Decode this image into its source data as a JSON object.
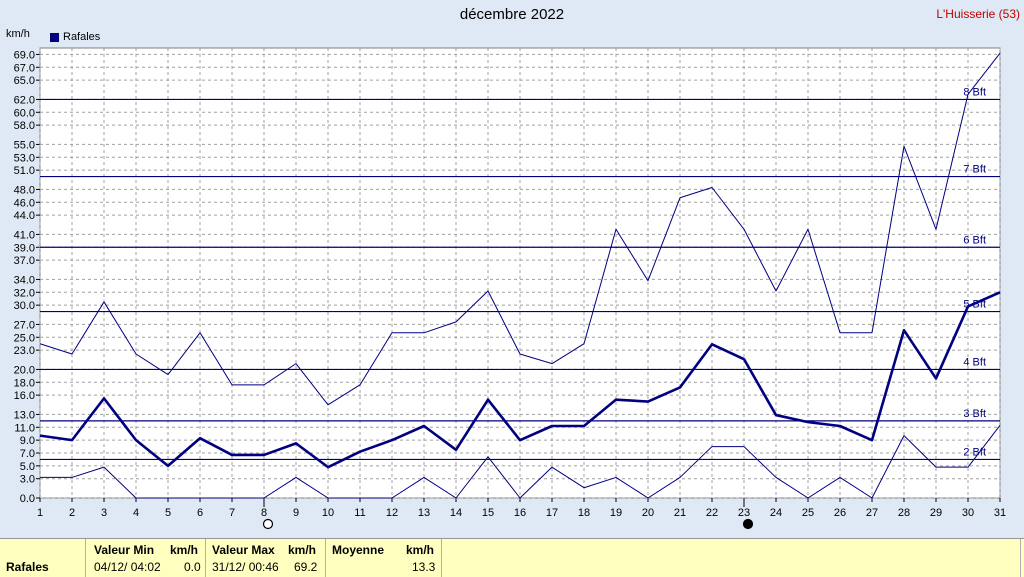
{
  "title": "décembre 2022",
  "station": "L'Huisserie (53)",
  "unit_label": "km/h",
  "legend_label": "Rafales",
  "chart_data": {
    "type": "line",
    "x": [
      1,
      2,
      3,
      4,
      5,
      6,
      7,
      8,
      9,
      10,
      11,
      12,
      13,
      14,
      15,
      16,
      17,
      18,
      19,
      20,
      21,
      22,
      23,
      24,
      25,
      26,
      27,
      28,
      29,
      30,
      31
    ],
    "xlim": [
      1,
      31
    ],
    "ylim": [
      0,
      70
    ],
    "yticks": [
      0.0,
      3.0,
      5.0,
      7.0,
      9.0,
      11.0,
      13.0,
      16.0,
      18.0,
      20.0,
      23.0,
      25.0,
      27.0,
      30.0,
      32.0,
      34.0,
      37.0,
      39.0,
      41.0,
      44.0,
      46.0,
      48.0,
      51.0,
      53.0,
      55.0,
      58.0,
      60.0,
      62.0,
      65.0,
      67.0,
      69.0
    ],
    "series": [
      {
        "name": "Rafales",
        "style": "thick",
        "color": "#000080",
        "values": [
          9.7,
          9.0,
          15.5,
          9.0,
          5.0,
          9.3,
          6.7,
          6.7,
          8.5,
          4.8,
          7.2,
          9.0,
          11.2,
          7.5,
          15.3,
          9.0,
          11.2,
          11.2,
          15.3,
          15.0,
          17.2,
          23.9,
          21.6,
          12.9,
          11.8,
          11.2,
          9.0,
          26.1,
          18.6,
          29.8,
          32.0
        ]
      },
      {
        "style": "thin-max",
        "color": "#000080",
        "values": [
          24.0,
          22.4,
          30.5,
          22.4,
          19.2,
          25.7,
          17.6,
          17.6,
          20.9,
          14.5,
          17.6,
          25.7,
          25.7,
          27.4,
          32.2,
          22.4,
          20.9,
          24.0,
          41.8,
          33.8,
          46.7,
          48.3,
          41.8,
          32.2,
          41.8,
          25.7,
          25.7,
          54.7,
          41.8,
          62.8,
          69.2
        ]
      },
      {
        "style": "thin-min",
        "color": "#000080",
        "values": [
          3.2,
          3.2,
          4.8,
          0.0,
          0.0,
          0.0,
          0.0,
          0.0,
          3.2,
          0.0,
          0.0,
          0.0,
          3.2,
          0.0,
          6.4,
          0.0,
          4.8,
          1.6,
          3.2,
          0.0,
          3.2,
          8.0,
          8.0,
          3.2,
          0.0,
          3.2,
          0.0,
          9.7,
          4.8,
          4.8,
          11.3
        ]
      }
    ],
    "beaufort": [
      {
        "label": "2 Bft",
        "value": 6
      },
      {
        "label": "3 Bft",
        "value": 12
      },
      {
        "label": "4 Bft",
        "value": 20
      },
      {
        "label": "5 Bft",
        "value": 29
      },
      {
        "label": "6 Bft",
        "value": 39
      },
      {
        "label": "7 Bft",
        "value": 50
      },
      {
        "label": "8 Bft",
        "value": 62
      }
    ],
    "moon_phases": [
      {
        "day": 8,
        "phase": "full-moon"
      },
      {
        "day": 23,
        "phase": "new-moon"
      }
    ],
    "grid": true
  },
  "footer": {
    "row_label": "Rafales",
    "min_header": "Valeur Min",
    "min_unit": "km/h",
    "min_date": "04/12/  04:02",
    "min_value": "0.0",
    "max_header": "Valeur Max",
    "max_unit": "km/h",
    "max_date": "31/12/  00:46",
    "max_value": "69.2",
    "mean_header": "Moyenne",
    "mean_unit": "km/h",
    "mean_value": "13.3"
  }
}
